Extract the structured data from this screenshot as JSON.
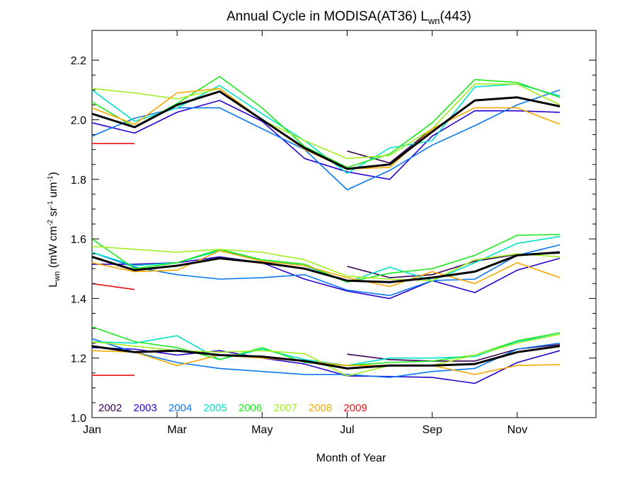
{
  "chart_data": {
    "type": "line",
    "title": {
      "main": "Annual Cycle in MODISA(AT36) L",
      "sub": "wn",
      "tail": "(443)"
    },
    "xlabel": "Month of Year",
    "ylabel": {
      "main": "L",
      "sub": "wn",
      "units": " (mW cm",
      "e1": "-2",
      "u2": " sr",
      "e2": "-1",
      "u3": " um",
      "e3": "-1",
      "u4": ")"
    },
    "x_ticks": [
      {
        "label": "Jan",
        "value": 1
      },
      {
        "label": "Mar",
        "value": 3
      },
      {
        "label": "May",
        "value": 5
      },
      {
        "label": "Jul",
        "value": 7
      },
      {
        "label": "Sep",
        "value": 9
      },
      {
        "label": "Nov",
        "value": 11
      }
    ],
    "y_ticks": [
      {
        "label": "1.0",
        "value": 1.0
      },
      {
        "label": "1.2",
        "value": 1.2
      },
      {
        "label": "1.4",
        "value": 1.4
      },
      {
        "label": "1.6",
        "value": 1.6
      },
      {
        "label": "1.8",
        "value": 1.8
      },
      {
        "label": "2.0",
        "value": 2.0
      },
      {
        "label": "2.2",
        "value": 2.2
      }
    ],
    "xlim": [
      1,
      12.85
    ],
    "ylim": [
      1.0,
      2.3
    ],
    "x": [
      1,
      2,
      3,
      4,
      5,
      6,
      7,
      8,
      9,
      10,
      11,
      12
    ],
    "legend_position": "bottom-left",
    "series": [
      {
        "name": "2002",
        "color": "#3a0055",
        "groups": [
          [
            null,
            null,
            null,
            null,
            null,
            null,
            1.895,
            1.855,
            1.97,
            null,
            null,
            null
          ],
          [
            null,
            null,
            null,
            null,
            null,
            null,
            1.508,
            1.47,
            1.48,
            1.525,
            1.548,
            1.552
          ],
          [
            null,
            null,
            null,
            null,
            null,
            null,
            1.213,
            1.195,
            1.19,
            1.19,
            1.23,
            1.245
          ]
        ]
      },
      {
        "name": "2003",
        "color": "#2a00d0",
        "groups": [
          [
            1.99,
            1.955,
            2.025,
            2.065,
            1.995,
            1.87,
            1.825,
            1.8,
            1.945,
            2.03,
            2.03,
            2.025
          ],
          [
            1.515,
            1.515,
            1.52,
            1.54,
            1.52,
            1.465,
            1.425,
            1.4,
            1.46,
            1.42,
            1.495,
            1.535
          ],
          [
            1.235,
            1.23,
            1.21,
            1.225,
            1.2,
            1.18,
            1.14,
            1.138,
            1.135,
            1.115,
            1.185,
            1.225
          ]
        ]
      },
      {
        "name": "2004",
        "color": "#0a78f0",
        "groups": [
          [
            1.945,
            2.005,
            2.04,
            2.04,
            1.97,
            1.9,
            1.765,
            1.83,
            1.915,
            1.98,
            2.05,
            2.1
          ],
          [
            1.555,
            1.505,
            1.48,
            1.465,
            1.47,
            1.48,
            1.428,
            1.41,
            1.46,
            1.465,
            1.545,
            1.58
          ],
          [
            1.265,
            1.22,
            1.185,
            1.165,
            1.155,
            1.145,
            1.145,
            1.135,
            1.155,
            1.165,
            1.23,
            1.25
          ]
        ]
      },
      {
        "name": "2005",
        "color": "#00e0c8",
        "groups": [
          [
            2.1,
            1.995,
            2.04,
            2.115,
            2.02,
            1.93,
            1.82,
            1.905,
            1.93,
            2.11,
            2.12,
            2.08
          ],
          [
            1.555,
            1.51,
            1.52,
            1.56,
            1.53,
            1.51,
            1.455,
            1.505,
            1.46,
            1.52,
            1.585,
            1.608
          ],
          [
            1.255,
            1.25,
            1.275,
            1.195,
            1.23,
            1.195,
            1.175,
            1.2,
            1.2,
            1.205,
            1.255,
            1.28
          ]
        ]
      },
      {
        "name": "2006",
        "color": "#1ee81e",
        "groups": [
          [
            2.06,
            1.975,
            2.055,
            2.145,
            2.04,
            1.91,
            1.84,
            1.885,
            1.99,
            2.135,
            2.125,
            2.075
          ],
          [
            1.6,
            1.5,
            1.52,
            1.565,
            1.53,
            1.515,
            1.455,
            1.485,
            1.5,
            1.545,
            1.612,
            1.615
          ],
          [
            1.305,
            1.255,
            1.235,
            1.195,
            1.235,
            1.185,
            1.175,
            1.185,
            1.19,
            1.21,
            1.258,
            1.285
          ]
        ]
      },
      {
        "name": "2007",
        "color": "#a0f020",
        "groups": [
          [
            2.105,
            2.09,
            2.07,
            2.105,
            2.0,
            1.93,
            1.87,
            1.88,
            1.97,
            2.12,
            2.12,
            2.05
          ],
          [
            1.575,
            1.565,
            1.555,
            1.565,
            1.555,
            1.53,
            1.475,
            1.465,
            1.46,
            1.53,
            1.55,
            1.54
          ],
          [
            1.255,
            1.24,
            1.225,
            1.22,
            1.225,
            1.215,
            1.14,
            1.175,
            1.175,
            1.21,
            1.25,
            1.28
          ]
        ]
      },
      {
        "name": "2008",
        "color": "#f5a800",
        "groups": [
          [
            2.04,
            1.985,
            2.09,
            2.105,
            2.0,
            1.9,
            1.835,
            1.84,
            1.97,
            2.04,
            2.04,
            1.985
          ],
          [
            1.52,
            1.49,
            1.495,
            1.56,
            1.525,
            1.51,
            1.47,
            1.44,
            1.49,
            1.45,
            1.52,
            1.47
          ],
          [
            1.225,
            1.22,
            1.175,
            1.21,
            1.2,
            1.19,
            1.175,
            1.175,
            1.175,
            1.145,
            1.175,
            1.178
          ]
        ]
      },
      {
        "name": "2009",
        "color": "#e81010",
        "groups": [
          [
            1.92,
            1.92,
            null,
            null,
            null,
            null,
            null,
            null,
            null,
            null,
            null,
            null
          ],
          [
            1.45,
            1.43,
            null,
            null,
            null,
            null,
            null,
            null,
            null,
            null,
            null,
            null
          ],
          [
            1.142,
            1.142,
            null,
            null,
            null,
            null,
            null,
            null,
            null,
            null,
            null,
            null
          ]
        ]
      },
      {
        "name": "",
        "color": "#000000",
        "width": 3,
        "groups": [
          [
            2.02,
            1.975,
            2.05,
            2.095,
            2.0,
            1.905,
            1.835,
            1.85,
            1.96,
            2.065,
            2.075,
            2.045
          ],
          [
            1.54,
            1.495,
            1.51,
            1.535,
            1.52,
            1.5,
            1.46,
            1.455,
            1.47,
            1.49,
            1.545,
            1.555
          ],
          [
            1.24,
            1.22,
            1.225,
            1.21,
            1.205,
            1.19,
            1.165,
            1.175,
            1.175,
            1.18,
            1.22,
            1.24
          ]
        ]
      }
    ]
  }
}
